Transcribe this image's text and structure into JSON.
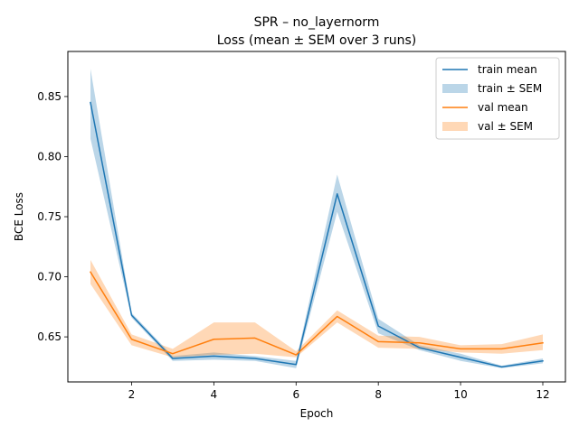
{
  "chart_data": {
    "type": "line",
    "title": "SPR – no_layernorm",
    "subtitle": "Loss (mean ± SEM over 3 runs)",
    "xlabel": "Epoch",
    "ylabel": "BCE Loss",
    "xlim": [
      0.45,
      12.55
    ],
    "ylim": [
      0.6125,
      0.8875
    ],
    "xticks": [
      2,
      4,
      6,
      8,
      10,
      12
    ],
    "yticks": [
      0.65,
      0.7,
      0.75,
      0.8,
      0.85
    ],
    "ytick_labels": [
      "0.65",
      "0.70",
      "0.75",
      "0.80",
      "0.85"
    ],
    "grid": false,
    "legend_position": "top-right",
    "x": [
      1,
      2,
      3,
      4,
      5,
      6,
      7,
      8,
      9,
      10,
      11,
      12
    ],
    "series": [
      {
        "name": "train mean",
        "band_name": "train ± SEM",
        "color": "#1f77b4",
        "band_color": "#1f77b4",
        "values": [
          0.845,
          0.668,
          0.632,
          0.634,
          0.632,
          0.627,
          0.769,
          0.659,
          0.641,
          0.633,
          0.625,
          0.63
        ],
        "lower": [
          0.815,
          0.666,
          0.63,
          0.631,
          0.63,
          0.624,
          0.754,
          0.653,
          0.639,
          0.63,
          0.624,
          0.628
        ],
        "upper": [
          0.873,
          0.67,
          0.634,
          0.637,
          0.634,
          0.63,
          0.785,
          0.665,
          0.643,
          0.636,
          0.626,
          0.632
        ]
      },
      {
        "name": "val mean",
        "band_name": "val ± SEM",
        "color": "#ff7f0e",
        "band_color": "#ff7f0e",
        "values": [
          0.704,
          0.648,
          0.636,
          0.648,
          0.649,
          0.635,
          0.667,
          0.646,
          0.645,
          0.64,
          0.64,
          0.645
        ],
        "lower": [
          0.694,
          0.643,
          0.633,
          0.635,
          0.636,
          0.633,
          0.662,
          0.641,
          0.64,
          0.637,
          0.636,
          0.639
        ],
        "upper": [
          0.714,
          0.652,
          0.64,
          0.662,
          0.662,
          0.638,
          0.672,
          0.651,
          0.65,
          0.643,
          0.644,
          0.652
        ]
      }
    ]
  }
}
